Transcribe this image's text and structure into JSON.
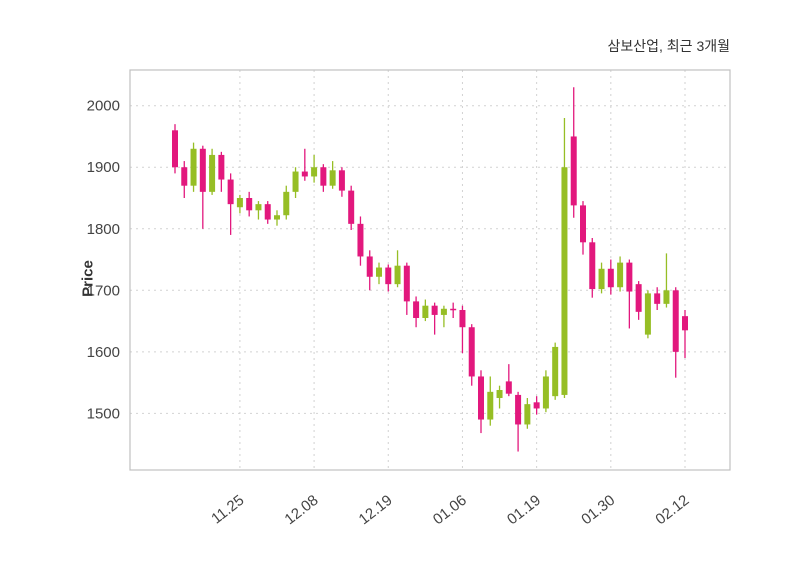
{
  "chart": {
    "title": "삼보산업, 최근 3개월",
    "ylabel": "Price"
  },
  "chart_data": {
    "type": "candlestick",
    "title": "삼보산업, 최근 3개월",
    "ylabel": "Price",
    "xlabel": "",
    "ylim": [
      1408,
      2058
    ],
    "yticks": [
      1500,
      1600,
      1700,
      1800,
      1900,
      2000
    ],
    "xtick_labels": [
      "11.25",
      "12.08",
      "12.19",
      "01.06",
      "01.19",
      "01.30",
      "02.12"
    ],
    "xtick_indices": [
      7,
      15,
      23,
      31,
      39,
      47,
      55
    ],
    "legend": "none",
    "grid": true,
    "grid_style": "dashed",
    "up_color": "#96be25",
    "down_color": "#e2187d",
    "grid_color": "#d2d2d2",
    "frame_color": "#c0c0c0",
    "tick_label_color": "#444444",
    "ohlc": [
      [
        1960,
        1970,
        1890,
        1900
      ],
      [
        1900,
        1910,
        1850,
        1870
      ],
      [
        1870,
        1940,
        1860,
        1930
      ],
      [
        1930,
        1935,
        1800,
        1860
      ],
      [
        1860,
        1930,
        1855,
        1920
      ],
      [
        1920,
        1925,
        1860,
        1880
      ],
      [
        1880,
        1890,
        1790,
        1840
      ],
      [
        1835,
        1855,
        1825,
        1850
      ],
      [
        1850,
        1860,
        1820,
        1830
      ],
      [
        1830,
        1845,
        1815,
        1840
      ],
      [
        1840,
        1845,
        1808,
        1815
      ],
      [
        1815,
        1830,
        1805,
        1822
      ],
      [
        1822,
        1870,
        1815,
        1860
      ],
      [
        1860,
        1900,
        1850,
        1893
      ],
      [
        1893,
        1930,
        1878,
        1885
      ],
      [
        1885,
        1920,
        1875,
        1900
      ],
      [
        1900,
        1905,
        1860,
        1870
      ],
      [
        1870,
        1910,
        1865,
        1895
      ],
      [
        1895,
        1900,
        1852,
        1862
      ],
      [
        1862,
        1870,
        1798,
        1808
      ],
      [
        1808,
        1820,
        1740,
        1755
      ],
      [
        1755,
        1765,
        1700,
        1722
      ],
      [
        1722,
        1745,
        1710,
        1737
      ],
      [
        1737,
        1742,
        1698,
        1710
      ],
      [
        1710,
        1765,
        1705,
        1740
      ],
      [
        1740,
        1745,
        1660,
        1682
      ],
      [
        1682,
        1690,
        1640,
        1655
      ],
      [
        1655,
        1685,
        1650,
        1675
      ],
      [
        1675,
        1680,
        1628,
        1660
      ],
      [
        1660,
        1675,
        1640,
        1670
      ],
      [
        1670,
        1680,
        1655,
        1668
      ],
      [
        1668,
        1675,
        1598,
        1640
      ],
      [
        1640,
        1645,
        1545,
        1560
      ],
      [
        1560,
        1570,
        1468,
        1490
      ],
      [
        1490,
        1560,
        1480,
        1535
      ],
      [
        1525,
        1545,
        1508,
        1538
      ],
      [
        1552,
        1580,
        1528,
        1532
      ],
      [
        1530,
        1535,
        1438,
        1482
      ],
      [
        1482,
        1525,
        1475,
        1515
      ],
      [
        1518,
        1528,
        1498,
        1508
      ],
      [
        1508,
        1570,
        1502,
        1560
      ],
      [
        1528,
        1615,
        1522,
        1608
      ],
      [
        1530,
        1980,
        1525,
        1900
      ],
      [
        1950,
        2030,
        1818,
        1838
      ],
      [
        1838,
        1845,
        1758,
        1778
      ],
      [
        1778,
        1785,
        1688,
        1702
      ],
      [
        1702,
        1745,
        1695,
        1735
      ],
      [
        1735,
        1750,
        1693,
        1705
      ],
      [
        1705,
        1755,
        1698,
        1745
      ],
      [
        1745,
        1750,
        1638,
        1698
      ],
      [
        1710,
        1715,
        1652,
        1665
      ],
      [
        1628,
        1700,
        1622,
        1695
      ],
      [
        1695,
        1705,
        1668,
        1678
      ],
      [
        1678,
        1760,
        1672,
        1700
      ],
      [
        1700,
        1705,
        1558,
        1600
      ],
      [
        1658,
        1668,
        1590,
        1635
      ]
    ]
  }
}
